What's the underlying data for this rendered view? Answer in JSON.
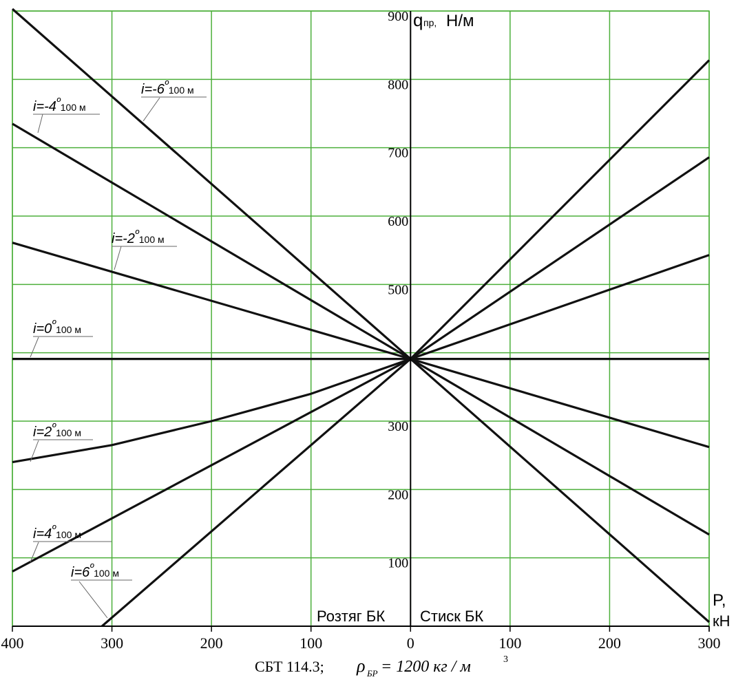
{
  "chart_data": {
    "type": "line",
    "y_axis_label": "q",
    "y_axis_label_sub": "пр,",
    "y_axis_label_unit": "Н/м",
    "x_axis_label_top": "P,",
    "x_axis_label_bottom": "кН",
    "left_region_label": "Розтяг БК",
    "right_region_label": "Стиск БК",
    "x_ticks_left": [
      "400",
      "300",
      "200",
      "100"
    ],
    "x_ticks_right": [
      "0",
      "100",
      "200",
      "300"
    ],
    "x_tick_values": [
      -400,
      -300,
      -200,
      -100,
      0,
      100,
      200,
      300
    ],
    "y_ticks": [
      {
        "label": "100",
        "value": 100
      },
      {
        "label": "200",
        "value": 200
      },
      {
        "label": "300",
        "value": 300
      },
      {
        "label": "500",
        "value": 500
      },
      {
        "label": "600",
        "value": 600
      },
      {
        "label": "700",
        "value": 700
      },
      {
        "label": "800",
        "value": 800
      },
      {
        "label": "900",
        "value": 900
      }
    ],
    "xlim": [
      -400,
      300
    ],
    "ylim": [
      0,
      900
    ],
    "grid": true,
    "line_labels": [
      {
        "prefix": "i=-6",
        "suffix": "100 м"
      },
      {
        "prefix": "i=-4",
        "suffix": "100 м"
      },
      {
        "prefix": "i=-2",
        "suffix": "100 м"
      },
      {
        "prefix": "i=0",
        "suffix": "100 м"
      },
      {
        "prefix": "i=2",
        "suffix": "100 м"
      },
      {
        "prefix": "i=4",
        "suffix": "100 м"
      },
      {
        "prefix": "i=6",
        "suffix": "100 м"
      }
    ],
    "degree_symbol": "º",
    "series": [
      {
        "x": [
          -400,
          0,
          300
        ],
        "y": [
          903,
          391,
          6
        ]
      },
      {
        "x": [
          -400,
          0,
          300
        ],
        "y": [
          735,
          391,
          134
        ]
      },
      {
        "x": [
          -400,
          0,
          300
        ],
        "y": [
          561,
          391,
          262
        ]
      },
      {
        "x": [
          -400,
          0,
          300
        ],
        "y": [
          391,
          391,
          391
        ]
      },
      {
        "x": [
          -400,
          -300,
          -200,
          -100,
          0,
          300
        ],
        "y": [
          240,
          265,
          300,
          340,
          391,
          543
        ]
      },
      {
        "x": [
          -400,
          0,
          300
        ],
        "y": [
          80,
          391,
          686
        ]
      },
      {
        "x": [
          -310,
          0,
          300
        ],
        "y": [
          0,
          391,
          828
        ]
      }
    ],
    "caption": "СБТ 114.3;",
    "caption_formula_rho": "ρ",
    "caption_formula_sub": "БР",
    "caption_formula_rest": " = 1200 кг / м",
    "caption_formula_sup": "3"
  }
}
